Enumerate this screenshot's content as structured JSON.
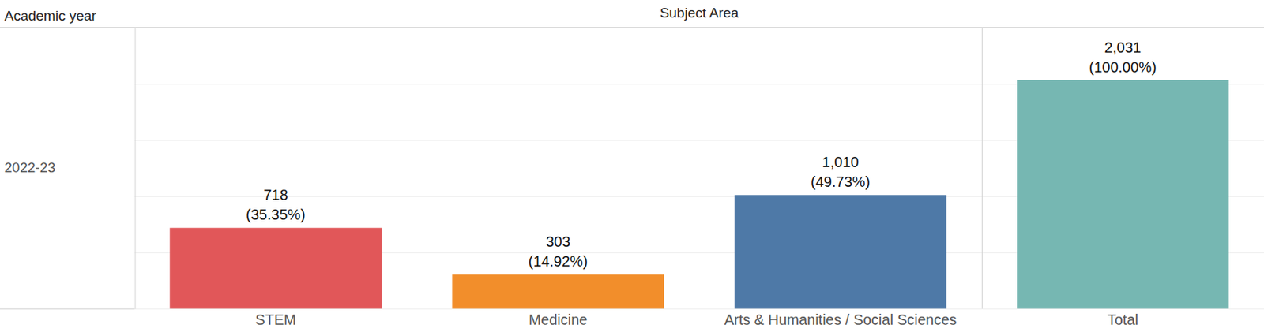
{
  "chart_data": {
    "type": "bar",
    "row_header_title": "Academic year",
    "column_header_title": "Subject Area",
    "row_label": "2022-23",
    "categories": [
      "STEM",
      "Medicine",
      "Arts & Humanities / Social Sciences",
      "Total"
    ],
    "values": [
      718,
      303,
      1010,
      2031
    ],
    "value_labels": [
      "718",
      "303",
      "1,010",
      "2,031"
    ],
    "shares": [
      35.35,
      14.92,
      49.73,
      100.0
    ],
    "share_labels": [
      "(35.35%)",
      "(14.92%)",
      "(49.73%)",
      "(100.00%)"
    ],
    "colors": [
      "#e15759",
      "#f28e2b",
      "#4e79a7",
      "#76b7b2"
    ],
    "ylim": [
      0,
      2500
    ],
    "yticks": [
      0,
      500,
      1000,
      1500,
      2000
    ],
    "grid": true,
    "data_labels": true,
    "tick_labels": "x"
  }
}
